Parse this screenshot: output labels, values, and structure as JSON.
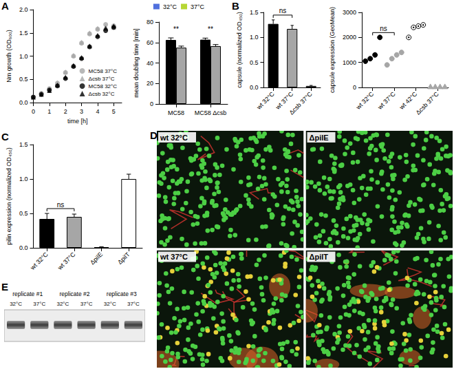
{
  "chart_data": [
    {
      "panel": "A",
      "type": "scatter",
      "x": [
        0,
        0.5,
        1,
        1.5,
        2,
        2.5,
        3,
        3.5,
        4,
        4.5,
        5
      ],
      "xlabel": "time [h]",
      "ylabel": "Nm growth (OD₆₀₀)",
      "xlim": [
        0,
        5.5
      ],
      "xticks": [
        0,
        1,
        2,
        3,
        4,
        5
      ],
      "ylim": [
        0,
        2
      ],
      "yticks": [
        {
          "value": 0,
          "label": "0.0"
        },
        0.5,
        {
          "value": 1,
          "label": "1.0"
        },
        1.5,
        {
          "value": 2,
          "label": "2.0"
        }
      ],
      "legend": "lower right",
      "series": [
        {
          "name": "MC58 37°C",
          "color": "#a6a6a6",
          "marker": "circle",
          "values": [
            0.12,
            0.2,
            0.3,
            0.42,
            0.65,
            1.0,
            1.28,
            1.48,
            1.58,
            1.68,
            1.65
          ]
        },
        {
          "name": "Δcsb 37°C",
          "color": "#a6a6a6",
          "marker": "triangle",
          "values": [
            0.12,
            0.2,
            0.3,
            0.43,
            0.66,
            1.02,
            1.3,
            1.5,
            1.6,
            1.63,
            1.62
          ]
        },
        {
          "name": "MC58 32°C",
          "color": "#000000",
          "marker": "circle",
          "values": [
            0.12,
            0.18,
            0.27,
            0.36,
            0.52,
            0.78,
            0.95,
            1.2,
            1.42,
            1.55,
            1.62
          ]
        },
        {
          "name": "Δcsb 32°C",
          "color": "#000000",
          "marker": "triangle",
          "values": [
            0.12,
            0.18,
            0.26,
            0.38,
            0.55,
            0.8,
            0.97,
            1.22,
            1.45,
            1.6,
            1.65
          ]
        }
      ]
    },
    {
      "type": "bar",
      "categories": [
        "MC58",
        "MC58 Δcsb"
      ],
      "ylabel": "mean doubling time [min]",
      "ylim": [
        0,
        80
      ],
      "yticks": [
        0,
        20,
        40,
        60,
        80
      ],
      "legend": "upper center",
      "series": [
        {
          "name": "32°C",
          "color": "#000000",
          "values": [
            62.5,
            62.8
          ],
          "errors": [
            2,
            1.5
          ]
        },
        {
          "name": "37°C",
          "color": "#a6a6a6",
          "values": [
            55,
            56.5
          ],
          "errors": [
            1.5,
            1.5
          ]
        }
      ],
      "annotations": [
        {
          "text": "**",
          "category": "MC58"
        },
        {
          "text": "**",
          "category": "MC58 Δcsb"
        }
      ]
    },
    {
      "panel": "B",
      "type": "bar",
      "categories": [
        "wt 32°C",
        "wt 37°C",
        "Δcsb 37°C"
      ],
      "ylabel": "capsule (normalized OD₄₅₀)",
      "ylim": [
        0,
        1.5
      ],
      "yticks": [
        {
          "value": 0,
          "label": "0.0"
        },
        0.5,
        {
          "value": 1,
          "label": "1.0"
        },
        1.5
      ],
      "values": [
        1.27,
        1.17,
        0.03
      ],
      "errors": [
        0.08,
        0.07,
        0.01
      ],
      "colors": [
        "#000000",
        "#a6a6a6",
        "#ffffff"
      ],
      "annotations": [
        {
          "text": "ns",
          "between": [
            "wt 32°C",
            "wt 37°C"
          ]
        }
      ]
    },
    {
      "type": "scatter",
      "categories": [
        "wt 32°C",
        "wt 37°C",
        "wt 42°C",
        "Δcsb 37°C"
      ],
      "ylabel": "capsule expression (GeoMean)",
      "ylim": [
        0,
        3000
      ],
      "yticks": [
        0,
        1000,
        2000,
        3000
      ],
      "series": [
        {
          "color": "#000000",
          "marker": "circle",
          "values": [
            1050,
            1150,
            1300,
            2000
          ]
        },
        {
          "color": "#a6a6a6",
          "marker": "circle",
          "values": [
            900,
            1150,
            1300,
            1400
          ]
        },
        {
          "color": "#000000",
          "marker": "circle-dot",
          "values": [
            2000,
            2400,
            2450,
            2500
          ]
        },
        {
          "color": "#a6a6a6",
          "marker": "triangle",
          "values": [
            30,
            30,
            30,
            30
          ]
        }
      ],
      "annotations": [
        {
          "text": "ns",
          "between": [
            "wt 32°C",
            "wt 37°C"
          ]
        }
      ]
    },
    {
      "panel": "C",
      "type": "bar",
      "categories": [
        "wt 32°C",
        "wt 37°C",
        "ΔpilE",
        "ΔpilT"
      ],
      "ylabel": "pilin expression (normalized OD₄₅₀)",
      "ylim": [
        0,
        1.5
      ],
      "yticks": [
        {
          "value": 0,
          "label": "0.0"
        },
        0.5,
        {
          "value": 1,
          "label": "1.0"
        },
        1.5
      ],
      "values": [
        0.42,
        0.45,
        0.01,
        1.0
      ],
      "errors": [
        0.08,
        0.04,
        0.005,
        0.07
      ],
      "colors": [
        "#000000",
        "#a6a6a6",
        "#ffffff",
        "#ffffff"
      ],
      "annotations": [
        {
          "text": "ns",
          "between": [
            "wt 32°C",
            "wt 37°C"
          ]
        }
      ]
    }
  ],
  "image_panels": [
    {
      "panel": "D",
      "tiles": [
        "wt 32°C",
        "ΔpilE",
        "wt 37°C",
        "ΔpilT"
      ]
    },
    {
      "panel": "E",
      "groups": [
        "replicate #1",
        "replicate #2",
        "replicate #3"
      ],
      "lanes": [
        "32°C",
        "37°C",
        "32°C",
        "37°C",
        "32°C",
        "37°C"
      ]
    }
  ]
}
